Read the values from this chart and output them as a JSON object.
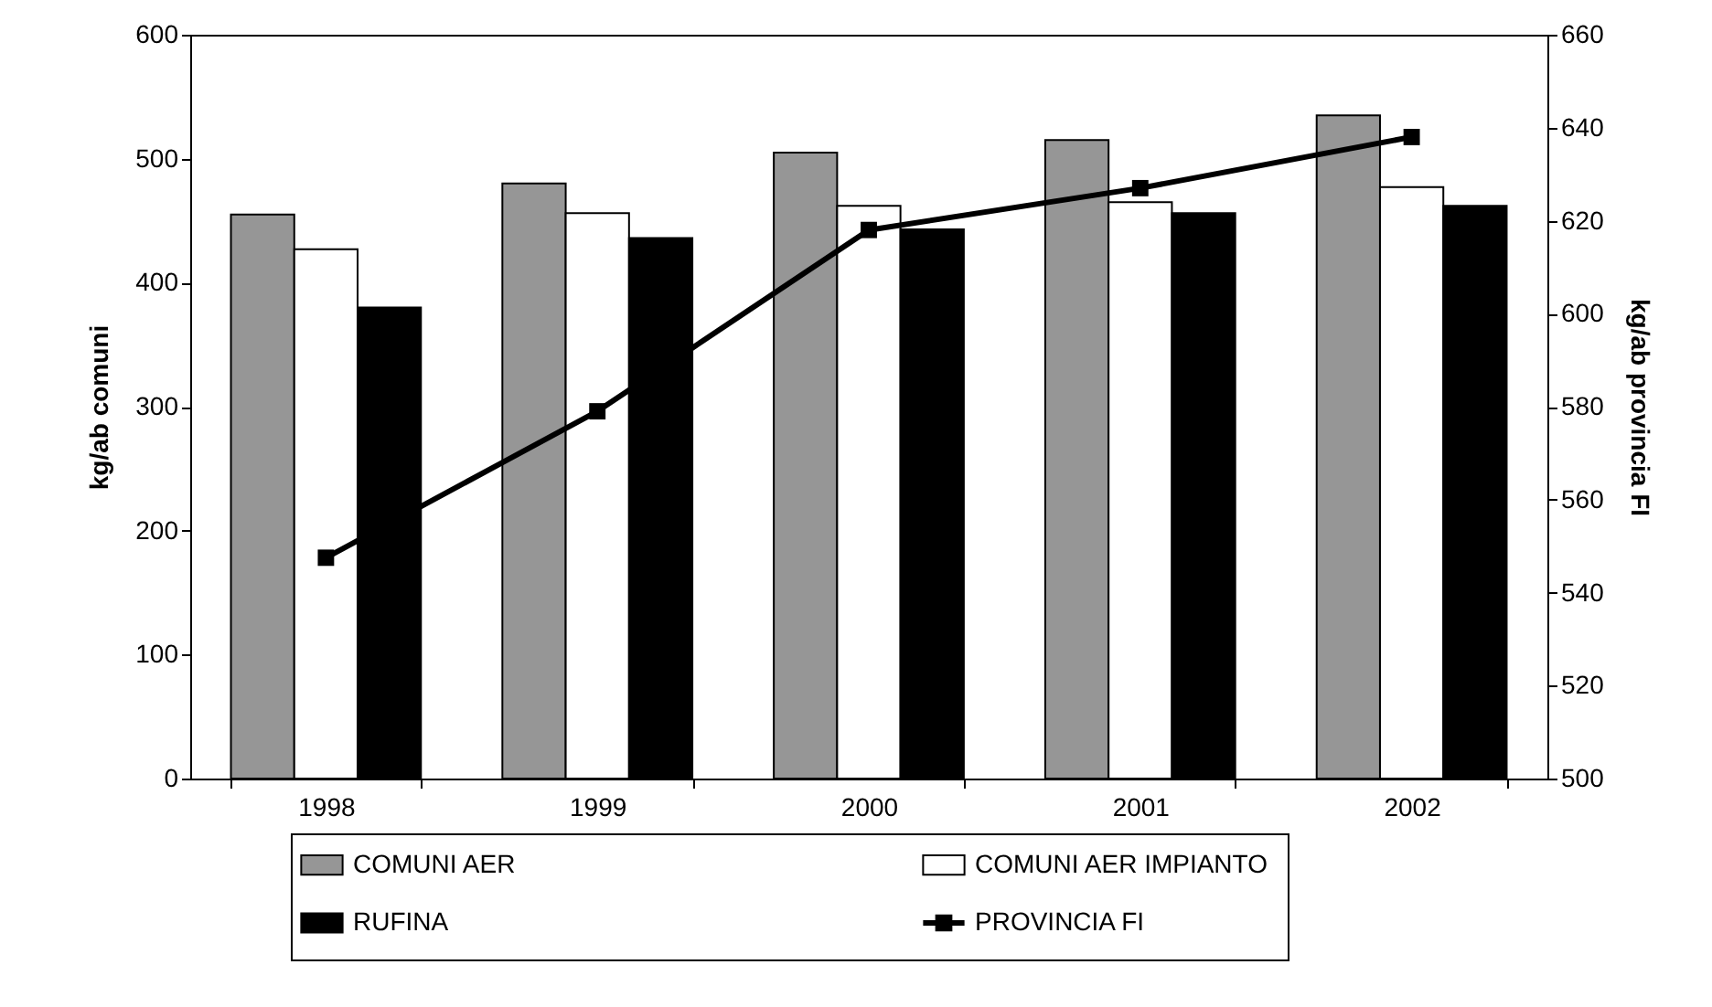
{
  "chart_data": {
    "type": "bar",
    "categories": [
      "1998",
      "1999",
      "2000",
      "2001",
      "2002"
    ],
    "ylabel": "kg/ab comuni",
    "y2label": "kg/ab provincia FI",
    "ylim": [
      0,
      600
    ],
    "yticks": [
      0,
      100,
      200,
      300,
      400,
      500,
      600
    ],
    "y2lim": [
      500,
      660
    ],
    "y2ticks": [
      500,
      520,
      540,
      560,
      580,
      600,
      620,
      640,
      660
    ],
    "legend": "bottom",
    "series": [
      {
        "name": "COMUNI AER",
        "color": "#969696",
        "values": [
          455,
          480,
          505,
          515,
          535
        ]
      },
      {
        "name": "COMUNI AER IMPIANTO",
        "color": "#ffffff",
        "values": [
          427,
          456,
          462,
          465,
          477
        ]
      },
      {
        "name": "RUFINA",
        "color": "#000000",
        "values": [
          380,
          436,
          443,
          456,
          462
        ]
      },
      {
        "name": "PROVINCIA FI",
        "type": "line",
        "axis": "y2",
        "marker": "square",
        "color": "#000000",
        "values": [
          547.5,
          579,
          618,
          627,
          638
        ]
      }
    ]
  }
}
